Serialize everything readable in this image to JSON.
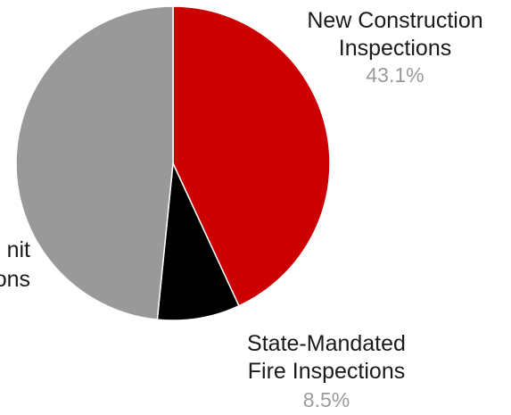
{
  "chart_data": {
    "type": "pie",
    "slices": [
      {
        "label_lines": [
          "New Construction",
          "Inspections"
        ],
        "percent_label": "43.1%",
        "value": 43.1,
        "color": "#cc0000"
      },
      {
        "label_lines": [
          "State-Mandated",
          "Fire Inspections"
        ],
        "percent_label": "8.5%",
        "value": 8.5,
        "color": "#000000"
      },
      {
        "label_lines": [
          "nit",
          "ons"
        ],
        "percent_label": "",
        "value": 48.4,
        "color": "#999999"
      }
    ],
    "start_angle_deg": 0,
    "direction": "clockwise",
    "legend": "none"
  }
}
